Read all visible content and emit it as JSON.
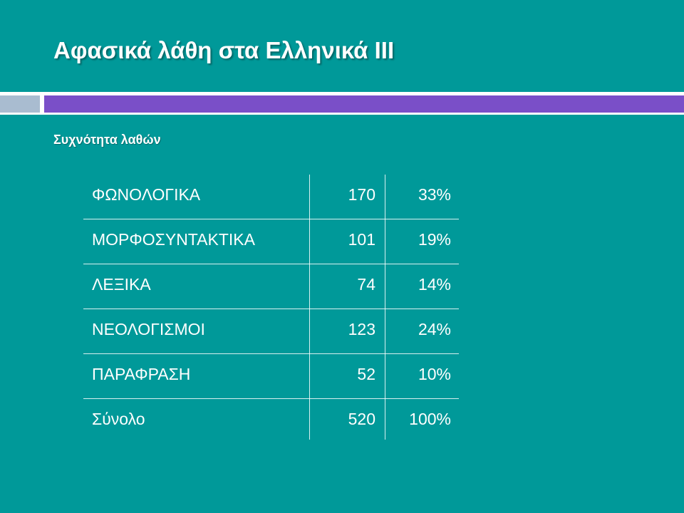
{
  "slide": {
    "title": "Αφασικά λάθη στα Ελληνικά ΙΙΙ",
    "subtitle": "Συχνότητα λαθών"
  },
  "colors": {
    "background": "#009999",
    "accent_bar": "#7a4fc8",
    "accent_bar_left": "#a9bcd0",
    "text": "#ffffff"
  },
  "table": {
    "rows": [
      {
        "category": "ΦΩΝΟΛΟΓΙΚΑ",
        "count": "170",
        "percent": "33%"
      },
      {
        "category": "ΜΟΡΦΟΣΥΝΤΑΚΤΙΚΑ",
        "count": "101",
        "percent": "19%"
      },
      {
        "category": "ΛΕΞΙΚΑ",
        "count": "74",
        "percent": "14%"
      },
      {
        "category": "ΝΕΟΛΟΓΙΣΜΟΙ",
        "count": "123",
        "percent": "24%"
      },
      {
        "category": "ΠΑΡΑΦΡΑΣΗ",
        "count": "52",
        "percent": "10%"
      },
      {
        "category": "Σύνολο",
        "count": "520",
        "percent": "100%"
      }
    ]
  }
}
